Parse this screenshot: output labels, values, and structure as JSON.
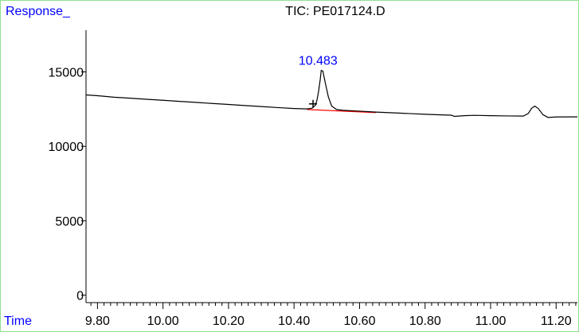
{
  "window": {
    "frame_color": "#8fe08f"
  },
  "chart_data": {
    "type": "line",
    "title": "TIC: PE017124.D",
    "ylabel": "Response_",
    "xlabel": "Time",
    "xlim": [
      9.765,
      11.265
    ],
    "ylim": [
      -500,
      17800
    ],
    "x_ticks": [
      9.8,
      10.0,
      10.2,
      10.4,
      10.6,
      10.8,
      11.0,
      11.2
    ],
    "x_tick_labels": [
      "9.80",
      "10.00",
      "10.20",
      "10.40",
      "10.60",
      "10.80",
      "11.00",
      "11.20"
    ],
    "y_ticks": [
      0,
      5000,
      10000,
      15000
    ],
    "y_tick_labels": [
      "0",
      "5000",
      "10000",
      "15000"
    ],
    "x_minor_step": 0.02,
    "grid": false,
    "colors": {
      "axis": "#000000",
      "trace": "#000000",
      "baseline": "#ff0000",
      "labels": "#0000ff",
      "title": "#000000"
    },
    "series": [
      {
        "values": [
          [
            9.765,
            13450
          ],
          [
            9.8,
            13400
          ],
          [
            9.85,
            13300
          ],
          [
            9.9,
            13230
          ],
          [
            9.95,
            13160
          ],
          [
            10.0,
            13090
          ],
          [
            10.05,
            13020
          ],
          [
            10.1,
            12950
          ],
          [
            10.15,
            12880
          ],
          [
            10.2,
            12810
          ],
          [
            10.25,
            12740
          ],
          [
            10.3,
            12670
          ],
          [
            10.35,
            12600
          ],
          [
            10.4,
            12540
          ],
          [
            10.44,
            12510
          ],
          [
            10.455,
            12560
          ],
          [
            10.465,
            12750
          ],
          [
            10.47,
            13100
          ],
          [
            10.475,
            13700
          ],
          [
            10.48,
            14500
          ],
          [
            10.483,
            15100
          ],
          [
            10.488,
            15050
          ],
          [
            10.495,
            14300
          ],
          [
            10.505,
            13300
          ],
          [
            10.515,
            12700
          ],
          [
            10.53,
            12470
          ],
          [
            10.55,
            12420
          ],
          [
            10.6,
            12360
          ],
          [
            10.65,
            12300
          ],
          [
            10.7,
            12250
          ],
          [
            10.75,
            12200
          ],
          [
            10.8,
            12150
          ],
          [
            10.85,
            12110
          ],
          [
            10.88,
            12090
          ],
          [
            10.89,
            12010
          ],
          [
            10.92,
            12060
          ],
          [
            10.95,
            12080
          ],
          [
            11.0,
            12060
          ],
          [
            11.05,
            12040
          ],
          [
            11.1,
            12030
          ],
          [
            11.115,
            12200
          ],
          [
            11.125,
            12550
          ],
          [
            11.135,
            12700
          ],
          [
            11.145,
            12550
          ],
          [
            11.16,
            12120
          ],
          [
            11.175,
            11940
          ],
          [
            11.2,
            11970
          ],
          [
            11.265,
            11980
          ]
        ]
      }
    ],
    "peaks": [
      {
        "label": "10.483",
        "x": 10.483,
        "y": 15100
      }
    ],
    "integration_baseline": {
      "x": [
        10.44,
        10.65
      ],
      "y": [
        12470,
        12260
      ]
    },
    "peak_start_marker": {
      "x": 10.458,
      "y": 12850
    }
  }
}
